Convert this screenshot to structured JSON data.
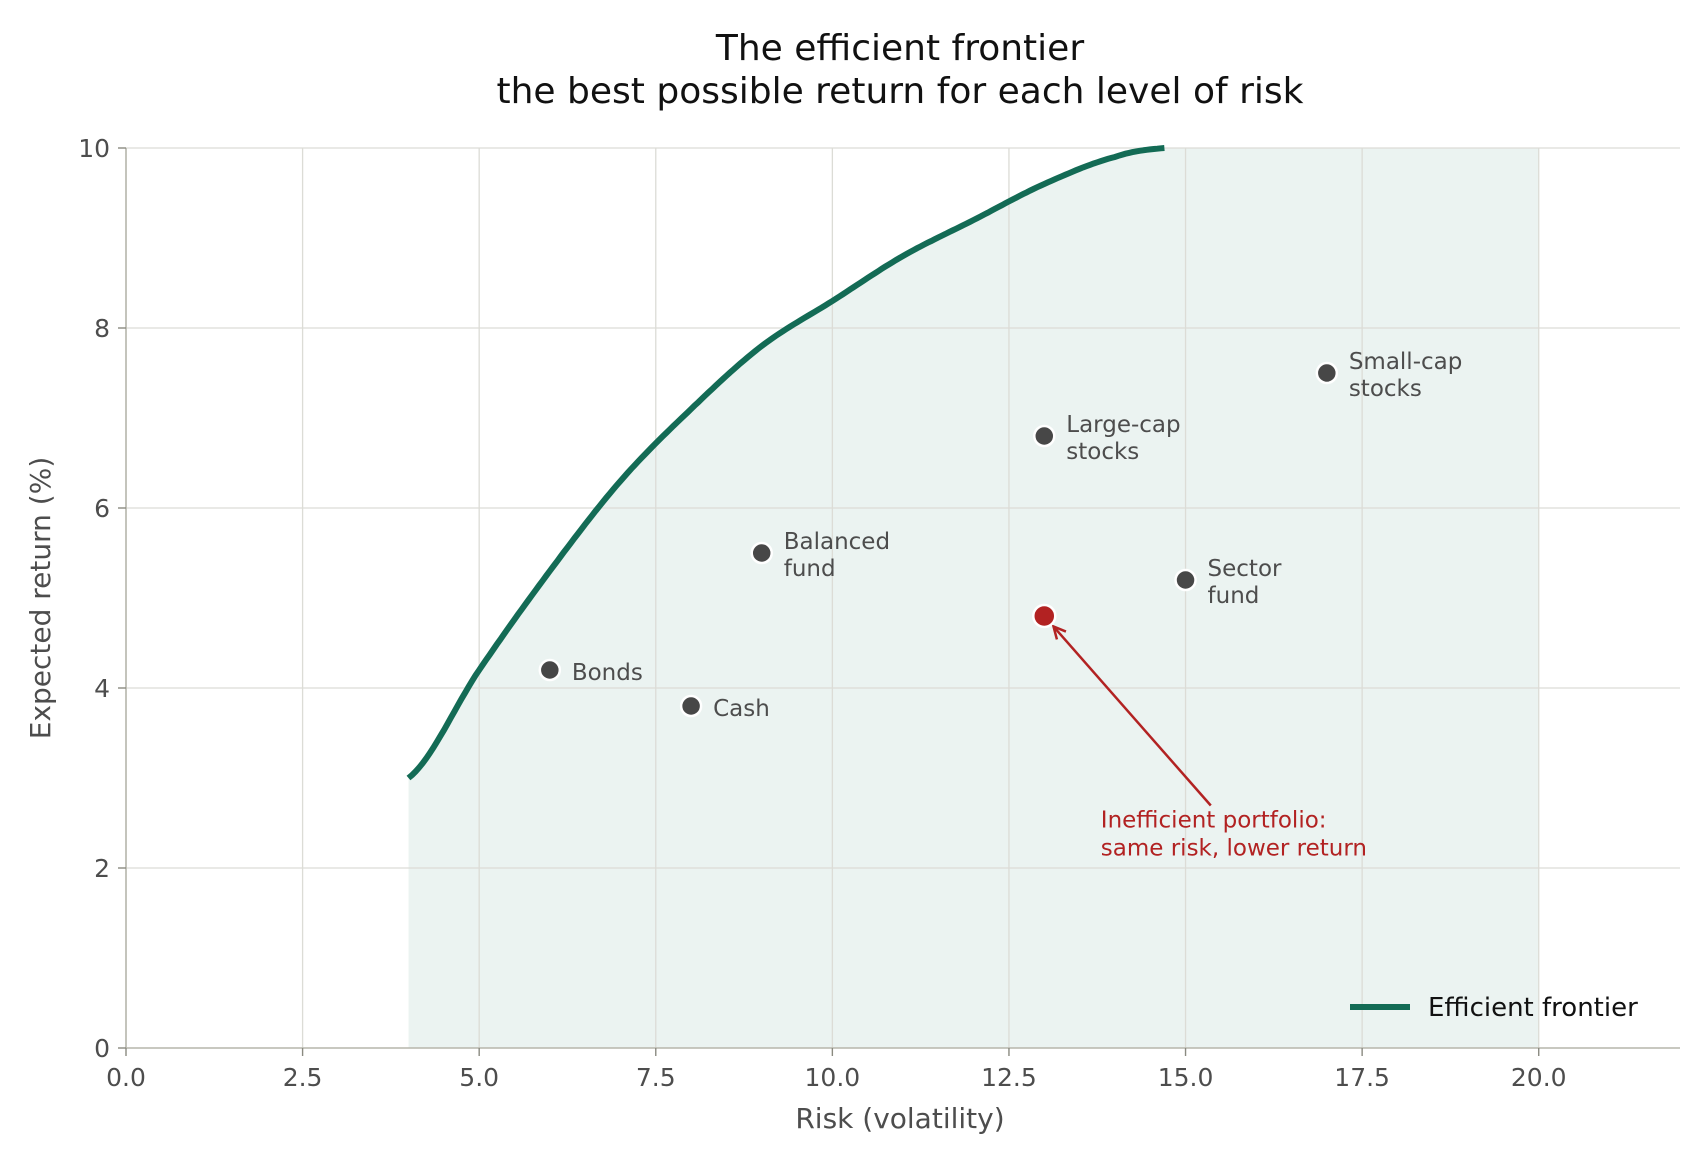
{
  "chart_data": {
    "type": "scatter",
    "title": "The efficient frontier",
    "subtitle": "the best possible return for each level of risk",
    "xlabel": "Risk (volatility)",
    "ylabel": "Expected return (%)",
    "xlim": [
      0,
      22
    ],
    "ylim": [
      0,
      10
    ],
    "x_ticks": [
      "0.0",
      "2.5",
      "5.0",
      "7.5",
      "10.0",
      "12.5",
      "15.0",
      "17.5",
      "20.0"
    ],
    "y_ticks": [
      "0",
      "2",
      "4",
      "6",
      "8",
      "10"
    ],
    "grid": true,
    "legend_position": "bottom-right",
    "frontier": {
      "name": "Efficient frontier",
      "color": "#136b55",
      "fill_color": "#e8f1ef",
      "feasible_region_x": [
        4,
        20
      ],
      "x": [
        4,
        5,
        6,
        7,
        8,
        9,
        10,
        11,
        12,
        13,
        14,
        14.7
      ],
      "y": [
        3.0,
        4.2,
        5.3,
        6.3,
        7.1,
        7.8,
        8.3,
        8.8,
        9.2,
        9.6,
        9.9,
        10.0
      ]
    },
    "points": [
      {
        "label": "Bonds",
        "x": 6,
        "y": 4.2,
        "color": "#474747"
      },
      {
        "label": "Cash",
        "x": 8,
        "y": 3.8,
        "color": "#474747"
      },
      {
        "label": "Balanced\nfund",
        "x": 9,
        "y": 5.5,
        "color": "#474747"
      },
      {
        "label": "Large-cap\nstocks",
        "x": 13,
        "y": 6.8,
        "color": "#474747"
      },
      {
        "label": "Sector\nfund",
        "x": 15,
        "y": 5.2,
        "color": "#474747"
      },
      {
        "label": "Small-cap\nstocks",
        "x": 17,
        "y": 7.5,
        "color": "#474747"
      }
    ],
    "highlight": {
      "x": 13,
      "y": 4.8,
      "color": "#b22222",
      "annotation": "Inefficient portfolio:\nsame risk, lower return",
      "annotation_x": 13.8,
      "annotation_y": 2.45
    }
  }
}
